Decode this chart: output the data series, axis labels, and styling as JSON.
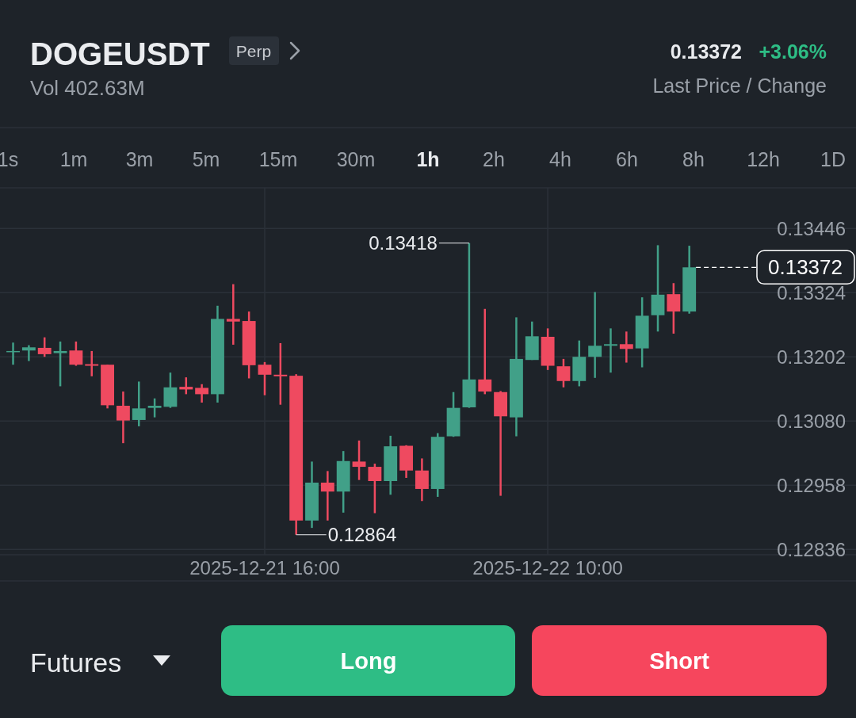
{
  "chart_data": {
    "type": "candlestick",
    "title": "DOGEUSDT",
    "subtitle": "Vol 402.63M",
    "annotations": [
      "Perp",
      "0.13372",
      "+3.06%",
      "Last Price / Change",
      "1s",
      "1m",
      "3m",
      "5m",
      "15m",
      "30m",
      "1h",
      "2h",
      "4h",
      "6h",
      "8h",
      "12h",
      "1D",
      "Futures",
      "Long",
      "Short",
      {
        "text": "0.13418",
        "x": "2025-12-22T05:00",
        "y": 0.13418
      },
      {
        "text": "0.12864",
        "x": "2025-12-21T18:00",
        "y": 0.12864
      }
    ],
    "x": [
      "2025-12-21T00:00",
      "2025-12-21T01:00",
      "2025-12-21T02:00",
      "2025-12-21T03:00",
      "2025-12-21T04:00",
      "2025-12-21T05:00",
      "2025-12-21T06:00",
      "2025-12-21T07:00",
      "2025-12-21T08:00",
      "2025-12-21T09:00",
      "2025-12-21T10:00",
      "2025-12-21T11:00",
      "2025-12-21T12:00",
      "2025-12-21T13:00",
      "2025-12-21T14:00",
      "2025-12-21T15:00",
      "2025-12-21T16:00",
      "2025-12-21T17:00",
      "2025-12-21T18:00",
      "2025-12-21T19:00",
      "2025-12-21T20:00",
      "2025-12-21T21:00",
      "2025-12-21T22:00",
      "2025-12-21T23:00",
      "2025-12-22T00:00",
      "2025-12-22T01:00",
      "2025-12-22T02:00",
      "2025-12-22T03:00",
      "2025-12-22T04:00",
      "2025-12-22T05:00",
      "2025-12-22T06:00",
      "2025-12-22T07:00",
      "2025-12-22T08:00",
      "2025-12-22T09:00",
      "2025-12-22T10:00",
      "2025-12-22T11:00",
      "2025-12-22T12:00",
      "2025-12-22T13:00",
      "2025-12-22T14:00",
      "2025-12-22T15:00",
      "2025-12-22T16:00",
      "2025-12-22T17:00",
      "2025-12-22T18:00",
      "2025-12-22T19:00"
    ],
    "ohlc": [
      [
        0.13212,
        0.13229,
        0.13187,
        0.13213
      ],
      [
        0.13214,
        0.13224,
        0.13194,
        0.1322
      ],
      [
        0.13219,
        0.13239,
        0.13202,
        0.13207
      ],
      [
        0.13209,
        0.13231,
        0.13146,
        0.13213
      ],
      [
        0.13214,
        0.13231,
        0.13185,
        0.13187
      ],
      [
        0.13188,
        0.13213,
        0.13165,
        0.13185
      ],
      [
        0.13187,
        0.13187,
        0.13104,
        0.1311
      ],
      [
        0.13109,
        0.13136,
        0.13038,
        0.13081
      ],
      [
        0.13082,
        0.13155,
        0.1307,
        0.13104
      ],
      [
        0.13105,
        0.13123,
        0.13087,
        0.13109
      ],
      [
        0.13107,
        0.13172,
        0.13105,
        0.13144
      ],
      [
        0.13145,
        0.13163,
        0.13131,
        0.1314
      ],
      [
        0.13143,
        0.1315,
        0.13115,
        0.13131
      ],
      [
        0.13131,
        0.13299,
        0.13115,
        0.13274
      ],
      [
        0.13274,
        0.1334,
        0.13225,
        0.13269
      ],
      [
        0.1327,
        0.13288,
        0.13161,
        0.13186
      ],
      [
        0.13187,
        0.13192,
        0.13129,
        0.13168
      ],
      [
        0.13168,
        0.13228,
        0.13111,
        0.13165
      ],
      [
        0.13166,
        0.13169,
        0.12864,
        0.12891
      ],
      [
        0.12891,
        0.13003,
        0.12877,
        0.12963
      ],
      [
        0.12963,
        0.12985,
        0.12891,
        0.12946
      ],
      [
        0.12946,
        0.13023,
        0.12906,
        0.13004
      ],
      [
        0.13003,
        0.13043,
        0.12968,
        0.12993
      ],
      [
        0.12993,
        0.12999,
        0.12905,
        0.12966
      ],
      [
        0.12966,
        0.13052,
        0.1294,
        0.13032
      ],
      [
        0.13033,
        0.13034,
        0.12972,
        0.12986
      ],
      [
        0.12986,
        0.13009,
        0.12928,
        0.12951
      ],
      [
        0.12951,
        0.13057,
        0.12936,
        0.1305
      ],
      [
        0.13051,
        0.13135,
        0.1305,
        0.13105
      ],
      [
        0.13106,
        0.13418,
        0.13105,
        0.13159
      ],
      [
        0.13159,
        0.13293,
        0.13131,
        0.13136
      ],
      [
        0.13135,
        0.13137,
        0.12938,
        0.13089
      ],
      [
        0.13087,
        0.13277,
        0.13051,
        0.13198
      ],
      [
        0.13196,
        0.13269,
        0.13196,
        0.13241
      ],
      [
        0.1324,
        0.13256,
        0.13177,
        0.13185
      ],
      [
        0.13184,
        0.13198,
        0.13144,
        0.13156
      ],
      [
        0.13156,
        0.13233,
        0.13146,
        0.13202
      ],
      [
        0.13202,
        0.13325,
        0.13162,
        0.13223
      ],
      [
        0.13223,
        0.13256,
        0.13172,
        0.13226
      ],
      [
        0.13226,
        0.1325,
        0.13191,
        0.13217
      ],
      [
        0.13218,
        0.13315,
        0.13182,
        0.1328
      ],
      [
        0.13281,
        0.13414,
        0.1325,
        0.1332
      ],
      [
        0.13321,
        0.13342,
        0.13246,
        0.13288
      ],
      [
        0.13288,
        0.13413,
        0.13284,
        0.13372
      ]
    ],
    "colors": [
      "#41a088",
      "#41a088",
      "#ef4a60",
      "#41a088",
      "#ef4a60",
      "#ef4a60",
      "#ef4a60",
      "#ef4a60",
      "#41a088",
      "#41a088",
      "#41a088",
      "#ef4a60",
      "#ef4a60",
      "#41a088",
      "#ef4a60",
      "#ef4a60",
      "#ef4a60",
      "#ef4a60",
      "#ef4a60",
      "#41a088",
      "#ef4a60",
      "#41a088",
      "#ef4a60",
      "#ef4a60",
      "#41a088",
      "#ef4a60",
      "#ef4a60",
      "#41a088",
      "#41a088",
      "#41a088",
      "#ef4a60",
      "#ef4a60",
      "#41a088",
      "#41a088",
      "#ef4a60",
      "#ef4a60",
      "#41a088",
      "#41a088",
      "#41a088",
      "#ef4a60",
      "#41a088",
      "#41a088",
      "#ef4a60",
      "#41a088"
    ],
    "xlim": [
      "2025-12-20T23:10",
      "2025-12-23T05:36"
    ],
    "xticks": [
      {
        "value": "2025-12-21T16:00",
        "label": "2025-12-21 16:00"
      },
      {
        "value": "2025-12-22T10:00",
        "label": "2025-12-22 10:00"
      }
    ],
    "ylim": [
      0.12826,
      0.13523
    ],
    "yticks": [
      0.12836,
      0.12958,
      {
        "value": 0.1308,
        "label": "0.13080"
      },
      0.13202,
      0.13324,
      0.13446
    ],
    "ref_lines": [
      {
        "axis": "y",
        "value": 0.13372,
        "label": "0.13372",
        "color": "#ffffff",
        "line_style": "dashed"
      }
    ],
    "grid": true
  }
}
